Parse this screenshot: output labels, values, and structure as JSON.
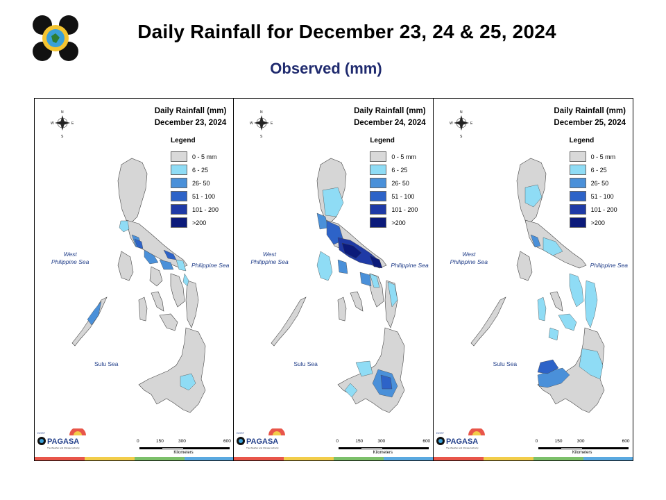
{
  "header": {
    "title": "Daily Rainfall for December 23, 24 & 25, 2024",
    "subtitle": "Observed (mm)"
  },
  "legend": {
    "title": "Legend",
    "items": [
      {
        "label": "0 - 5 mm",
        "color": "#d9d9d9"
      },
      {
        "label": "6 - 25",
        "color": "#8fdcf5"
      },
      {
        "label": "26- 50",
        "color": "#4a90d9"
      },
      {
        "label": "51 - 100",
        "color": "#2d63c8"
      },
      {
        "label": "101 - 200",
        "color": "#1f3aa6"
      },
      {
        "label": ">200",
        "color": "#0b1a7a"
      }
    ]
  },
  "labels": {
    "west_sea": "West\nPhilippine Sea",
    "philippine_sea": "Philippine Sea",
    "sulu_sea": "Sulu Sea",
    "compass_n": "N",
    "compass_s": "S",
    "compass_e": "E",
    "compass_w": "W",
    "scale_ticks": [
      "0",
      "150",
      "300",
      "600"
    ],
    "scale_unit": "Kilometers",
    "brand": "PAGASA",
    "brand_prefix": "DOST",
    "brand_tagline": "The Weather and Climate Authority"
  },
  "panels": [
    {
      "title_line1": "Daily Rainfall (mm)",
      "title_line2": "December 23, 2024"
    },
    {
      "title_line1": "Daily Rainfall (mm)",
      "title_line2": "December 24, 2024"
    },
    {
      "title_line1": "Daily Rainfall (mm)",
      "title_line2": "December 25, 2024"
    }
  ],
  "bottom_strip_colors": [
    "#e8564a",
    "#f2cd4a",
    "#7cc06a",
    "#5aa9e0"
  ]
}
